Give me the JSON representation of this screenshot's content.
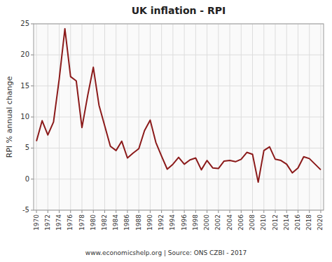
{
  "chart_data": {
    "type": "line",
    "title": "UK inflation - RPI",
    "ylabel": "RPI % annual change",
    "annotations": [
      "www.economicshelp.org | Source: ONS CZBI - 2017"
    ],
    "color": "#8B1A1A",
    "grid": true,
    "x": [
      1970,
      1971,
      1972,
      1973,
      1974,
      1975,
      1976,
      1977,
      1978,
      1979,
      1980,
      1981,
      1982,
      1983,
      1984,
      1985,
      1986,
      1987,
      1988,
      1989,
      1990,
      1991,
      1992,
      1993,
      1994,
      1995,
      1996,
      1997,
      1998,
      1999,
      2000,
      2001,
      2002,
      2003,
      2004,
      2005,
      2006,
      2007,
      2008,
      2009,
      2010,
      2011,
      2012,
      2013,
      2014,
      2015,
      2016,
      2017,
      2018,
      2019,
      2020
    ],
    "values": [
      6.1,
      9.4,
      7.1,
      9.2,
      16.1,
      24.2,
      16.5,
      15.8,
      8.3,
      13.4,
      18.0,
      11.9,
      8.6,
      5.3,
      4.6,
      6.1,
      3.4,
      4.2,
      4.9,
      7.8,
      9.5,
      5.9,
      3.7,
      1.6,
      2.4,
      3.5,
      2.4,
      3.1,
      3.4,
      1.5,
      3.0,
      1.8,
      1.7,
      2.9,
      3.0,
      2.8,
      3.2,
      4.3,
      4.0,
      -0.5,
      4.6,
      5.2,
      3.2,
      3.0,
      2.4,
      1.0,
      1.8,
      3.6,
      3.3,
      2.4,
      1.5
    ],
    "xlim": [
      1969.5,
      2020.5
    ],
    "xticks": [
      1970,
      1972,
      1974,
      1976,
      1978,
      1980,
      1982,
      1984,
      1986,
      1988,
      1990,
      1992,
      1994,
      1996,
      1998,
      2000,
      2002,
      2004,
      2006,
      2008,
      2010,
      2012,
      2014,
      2016,
      2018,
      2020
    ],
    "ylim": [
      -5,
      25
    ],
    "yticks": [
      -5,
      0,
      5,
      10,
      15,
      20,
      25
    ]
  }
}
